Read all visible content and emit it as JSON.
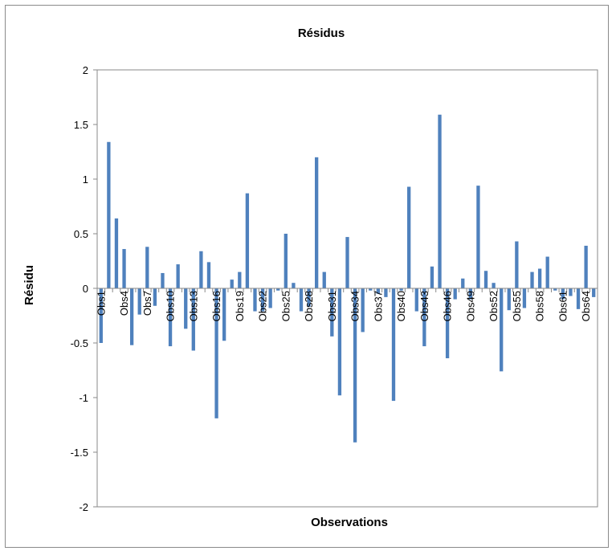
{
  "chart_data": {
    "type": "bar",
    "title": "Résidus",
    "xlabel": "Observations",
    "ylabel": "Résidu",
    "ylim": [
      -2,
      2
    ],
    "yticks": [
      "2",
      "1.5",
      "1",
      "0.5",
      "0",
      "-0.5",
      "-1",
      "-1.5",
      "-2"
    ],
    "ytick_values": [
      2,
      1.5,
      1,
      0.5,
      0,
      -0.5,
      -1,
      -1.5,
      -2
    ],
    "grid": false,
    "legend": "none",
    "bar_color": "#4f81bd",
    "categories": [
      "Obs1",
      "Obs2",
      "Obs3",
      "Obs4",
      "Obs5",
      "Obs6",
      "Obs7",
      "Obs8",
      "Obs9",
      "Obs10",
      "Obs11",
      "Obs12",
      "Obs13",
      "Obs14",
      "Obs15",
      "Obs16",
      "Obs17",
      "Obs18",
      "Obs19",
      "Obs20",
      "Obs21",
      "Obs22",
      "Obs23",
      "Obs24",
      "Obs25",
      "Obs26",
      "Obs27",
      "Obs28",
      "Obs29",
      "Obs30",
      "Obs31",
      "Obs32",
      "Obs33",
      "Obs34",
      "Obs35",
      "Obs36",
      "Obs37",
      "Obs38",
      "Obs39",
      "Obs40",
      "Obs41",
      "Obs42",
      "Obs43",
      "Obs44",
      "Obs45",
      "Obs46",
      "Obs47",
      "Obs48",
      "Obs49",
      "Obs50",
      "Obs51",
      "Obs52",
      "Obs53",
      "Obs54",
      "Obs55",
      "Obs56",
      "Obs57",
      "Obs58",
      "Obs59",
      "Obs60",
      "Obs61",
      "Obs62",
      "Obs63",
      "Obs64",
      "Obs65"
    ],
    "visible_tick_labels": [
      "Obs1",
      "Obs4",
      "Obs7",
      "Obs10",
      "Obs13",
      "Obs16",
      "Obs19",
      "Obs22",
      "Obs25",
      "Obs28",
      "Obs31",
      "Obs34",
      "Obs37",
      "Obs40",
      "Obs43",
      "Obs46",
      "Obs49",
      "Obs52",
      "Obs55",
      "Obs58",
      "Obs61",
      "Obs64"
    ],
    "values": [
      -0.5,
      1.34,
      0.64,
      0.36,
      -0.52,
      -0.24,
      0.38,
      -0.16,
      0.14,
      -0.53,
      0.22,
      -0.37,
      -0.57,
      0.34,
      0.24,
      -1.19,
      -0.48,
      0.08,
      0.15,
      0.87,
      -0.21,
      -0.21,
      -0.18,
      -0.02,
      0.5,
      0.05,
      -0.21,
      -0.17,
      1.2,
      0.15,
      -0.44,
      -0.98,
      0.47,
      -1.41,
      -0.4,
      -0.02,
      -0.05,
      -0.08,
      -1.03,
      -0.02,
      0.93,
      -0.21,
      -0.53,
      0.2,
      1.59,
      -0.64,
      -0.1,
      0.09,
      -0.1,
      0.94,
      0.16,
      0.05,
      -0.76,
      -0.2,
      0.43,
      -0.18,
      0.15,
      0.18,
      0.29,
      -0.02,
      -0.1,
      -0.07,
      -0.19,
      0.39,
      -0.08
    ]
  }
}
